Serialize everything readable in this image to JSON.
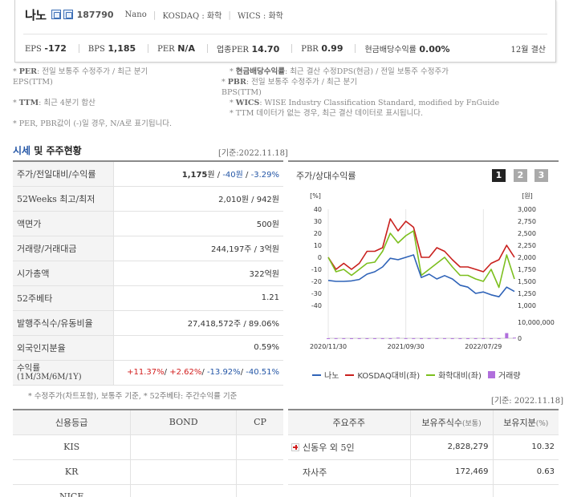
{
  "header": {
    "company_name": "나노",
    "code": "187790",
    "english_name": "Nano",
    "market": "KOSDAQ : 화학",
    "wics": "WICS : 화학",
    "stats": [
      {
        "label": "EPS",
        "value": "-172"
      },
      {
        "label": "BPS",
        "value": "1,185"
      },
      {
        "label": "PER",
        "value": "N/A"
      },
      {
        "label": "업종PER",
        "value": "14.70"
      },
      {
        "label": "PBR",
        "value": "0.99"
      },
      {
        "label": "현금배당수익률",
        "value": "0.00%"
      }
    ],
    "settlement": "12월 결산"
  },
  "notes": {
    "per_label": "PER",
    "per_text": ": 전일 보통주 수정주가 / 최근 분기",
    "per_text2": "EPS(TTM)",
    "div_label": "현금배당수익률",
    "div_text": ": 최근 결산 수정DPS(현금) / 전일 보통주 수정주가",
    "pbr_label": "PBR",
    "pbr_text": ": 전일 보통주 수정주가 / 최근 분기",
    "pbr_text2": "BPS(TTM)",
    "ttm_label": "TTM",
    "ttm_text": ": 최근 4분기 합산",
    "wics_label": "WICS",
    "wics_text": ": WISE Industry Classification Standard, modified by FnGuide",
    "ttm_missing": "* TTM 데이터가 없는 경우, 최근 결산 데이터로 표시됩니다.",
    "negative": "* PER, PBR값이 (-)일 경우, N/A로 표기됩니다."
  },
  "price_section": {
    "title_a": "시세",
    "title_b": " 및 주주현황",
    "base_date": "[기준:2022.11.18]",
    "rows": [
      {
        "label": "주가/전일대비/수익률",
        "price": "1,175",
        "unit": "원 / ",
        "change": "-40원",
        "slash": " / ",
        "rate": "-3.29%"
      },
      {
        "label": "52Weeks 최고/최저",
        "value": "2,010원 / 942원"
      },
      {
        "label": "액면가",
        "value": "500원"
      },
      {
        "label": "거래량/거래대금",
        "value": "244,197주 / 3억원"
      },
      {
        "label": "시가총액",
        "value": "322억원"
      },
      {
        "label": "52주베타",
        "value": "1.21"
      },
      {
        "label": "발행주식수/유동비율",
        "value": "27,418,572주 / 89.06%"
      },
      {
        "label": "외국인지분율",
        "value": "0.59%"
      },
      {
        "label": "수익률",
        "sublabel": "(1M/3M/6M/1Y)",
        "r1": "+11.37%",
        "r2": "+2.62%",
        "r3": "-13.92%",
        "r4": "-40.51%"
      }
    ],
    "footnote": "* 수정주가(차트포함), 보통주 기준, * 52주베타: 주간수익률 기준"
  },
  "chart": {
    "title": "주가/상대수익률",
    "pages": [
      "1",
      "2",
      "3"
    ],
    "left_unit": "[%]",
    "right_unit": "[원]",
    "left_ticks": [
      "40",
      "30",
      "20",
      "10",
      "0",
      "-10",
      "-20",
      "-30",
      "-40"
    ],
    "right_ticks": [
      "3,000",
      "2,750",
      "2,500",
      "2,250",
      "2,000",
      "1,750",
      "1,500",
      "1,250",
      "1,000"
    ],
    "vol_ticks": [
      "10,000,000",
      "0"
    ],
    "x_ticks": [
      "2020/11/30",
      "2021/09/30",
      "2022/07/29"
    ],
    "legend": [
      {
        "name": "나노",
        "color": "#2f63b8",
        "kind": "line"
      },
      {
        "name": "KOSDAQ대비(좌)",
        "color": "#c9201d",
        "kind": "line"
      },
      {
        "name": "화학대비(좌)",
        "color": "#7cbf1e",
        "kind": "line"
      },
      {
        "name": "거래량",
        "color": "#b06fdc",
        "kind": "box"
      }
    ],
    "colors": {
      "price": "#2f63b8",
      "kosdaq": "#c9201d",
      "chem": "#7cbf1e",
      "volume": "#b06fdc"
    }
  },
  "chart_data": {
    "type": "line",
    "x": [
      "2020/11",
      "2020/12",
      "2021/01",
      "2021/02",
      "2021/03",
      "2021/04",
      "2021/05",
      "2021/06",
      "2021/07",
      "2021/08",
      "2021/09",
      "2021/10",
      "2021/11",
      "2021/12",
      "2022/01",
      "2022/02",
      "2022/03",
      "2022/04",
      "2022/05",
      "2022/06",
      "2022/07",
      "2022/08",
      "2022/09",
      "2022/10",
      "2022/11"
    ],
    "series": [
      {
        "name": "나노",
        "axis": "right",
        "values": [
          1520,
          1500,
          1500,
          1510,
          1540,
          1650,
          1700,
          1800,
          1980,
          1950,
          2000,
          2050,
          1580,
          1650,
          1550,
          1620,
          1550,
          1420,
          1380,
          1250,
          1280,
          1220,
          1180,
          1380,
          1290
        ]
      },
      {
        "name": "KOSDAQ대비(좌)",
        "axis": "left",
        "values": [
          0,
          -10,
          -5,
          -10,
          -5,
          5,
          5,
          8,
          32,
          22,
          30,
          25,
          0,
          0,
          8,
          5,
          -2,
          -8,
          -8,
          -10,
          -12,
          -5,
          -2,
          10,
          0
        ]
      },
      {
        "name": "화학대비(좌)",
        "axis": "left",
        "values": [
          0,
          -12,
          -10,
          -15,
          -10,
          -5,
          -4,
          5,
          20,
          12,
          18,
          22,
          -15,
          -10,
          -5,
          0,
          -8,
          -15,
          -15,
          -18,
          -20,
          -10,
          -25,
          2,
          -18
        ]
      },
      {
        "name": "거래량",
        "axis": "volume",
        "values": [
          20000,
          40000,
          30000,
          20000,
          30000,
          20000,
          30000,
          30000,
          30000,
          300000,
          40000,
          40000,
          30000,
          60000,
          40000,
          40000,
          20000,
          20000,
          20000,
          20000,
          20000,
          20000,
          40000,
          2400000,
          300000
        ]
      }
    ],
    "ylim_left": [
      -40,
      40
    ],
    "ylim_right": [
      1000,
      3000
    ],
    "volume_max": 10000000
  },
  "credit": {
    "headers": [
      "신용등급",
      "BOND",
      "CP"
    ],
    "rows": [
      [
        "KIS",
        "",
        ""
      ],
      [
        "KR",
        "",
        ""
      ],
      [
        "NICE",
        "",
        ""
      ]
    ]
  },
  "holders": {
    "base_date": "[기준: 2022.11.18]",
    "headers": [
      "주요주주",
      "보유주식수",
      "(보통)",
      "보유지분",
      "(%)"
    ],
    "rows": [
      {
        "name": "신동우 외 5인",
        "shares": "2,828,279",
        "pct": "10.32"
      },
      {
        "name": "자사주",
        "shares": "172,469",
        "pct": "0.63"
      }
    ]
  }
}
